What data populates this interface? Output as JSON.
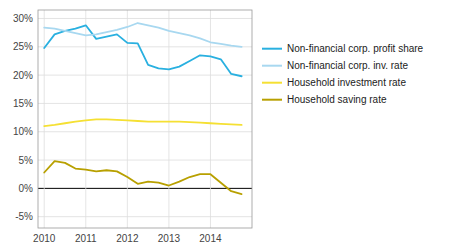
{
  "chart_data": {
    "type": "line",
    "x": [
      2010.0,
      2010.25,
      2010.5,
      2010.75,
      2011.0,
      2011.25,
      2011.5,
      2011.75,
      2012.0,
      2012.25,
      2012.5,
      2012.75,
      2013.0,
      2013.25,
      2013.5,
      2013.75,
      2014.0,
      2014.25,
      2014.5,
      2014.75
    ],
    "series": [
      {
        "name": "Non-financial corp. profit share",
        "color": "#29b0e0",
        "values": [
          24.8,
          27.2,
          27.8,
          28.2,
          28.8,
          26.4,
          26.8,
          27.2,
          25.7,
          25.6,
          21.8,
          21.2,
          21.0,
          21.5,
          22.5,
          23.5,
          23.3,
          22.8,
          20.2,
          19.8
        ]
      },
      {
        "name": "Non-financial corp. inv. rate",
        "color": "#a8d8f0",
        "values": [
          28.4,
          28.2,
          27.8,
          27.4,
          27.0,
          27.2,
          27.6,
          28.0,
          28.5,
          29.2,
          28.8,
          28.4,
          27.8,
          27.4,
          27.0,
          26.5,
          25.8,
          25.5,
          25.2,
          25.0
        ]
      },
      {
        "name": "Household investment rate",
        "color": "#f5e033",
        "values": [
          11.0,
          11.2,
          11.5,
          11.8,
          12.0,
          12.2,
          12.2,
          12.1,
          12.0,
          11.9,
          11.8,
          11.8,
          11.8,
          11.8,
          11.7,
          11.6,
          11.5,
          11.4,
          11.3,
          11.2
        ]
      },
      {
        "name": "Household saving rate",
        "color": "#b8a000",
        "values": [
          2.8,
          4.8,
          4.5,
          3.5,
          3.3,
          3.0,
          3.2,
          3.0,
          2.0,
          0.8,
          1.2,
          1.0,
          0.5,
          1.2,
          2.0,
          2.5,
          2.5,
          1.0,
          -0.5,
          -1.0
        ]
      }
    ],
    "xlim": [
      2009.85,
      2015.0
    ],
    "ylim": [
      -7.0,
      31.5
    ],
    "xticks": [
      2010,
      2011,
      2012,
      2013,
      2014
    ],
    "yticks": [
      {
        "value": -5,
        "label": "-5%"
      },
      {
        "value": 0,
        "label": "0%"
      },
      {
        "value": 5,
        "label": "5%"
      },
      {
        "value": 10,
        "label": "10%"
      },
      {
        "value": 15,
        "label": "15%"
      },
      {
        "value": 20,
        "label": "20%"
      },
      {
        "value": 25,
        "label": "25%"
      },
      {
        "value": 30,
        "label": "30%"
      }
    ],
    "grid": true,
    "legend": "right"
  }
}
